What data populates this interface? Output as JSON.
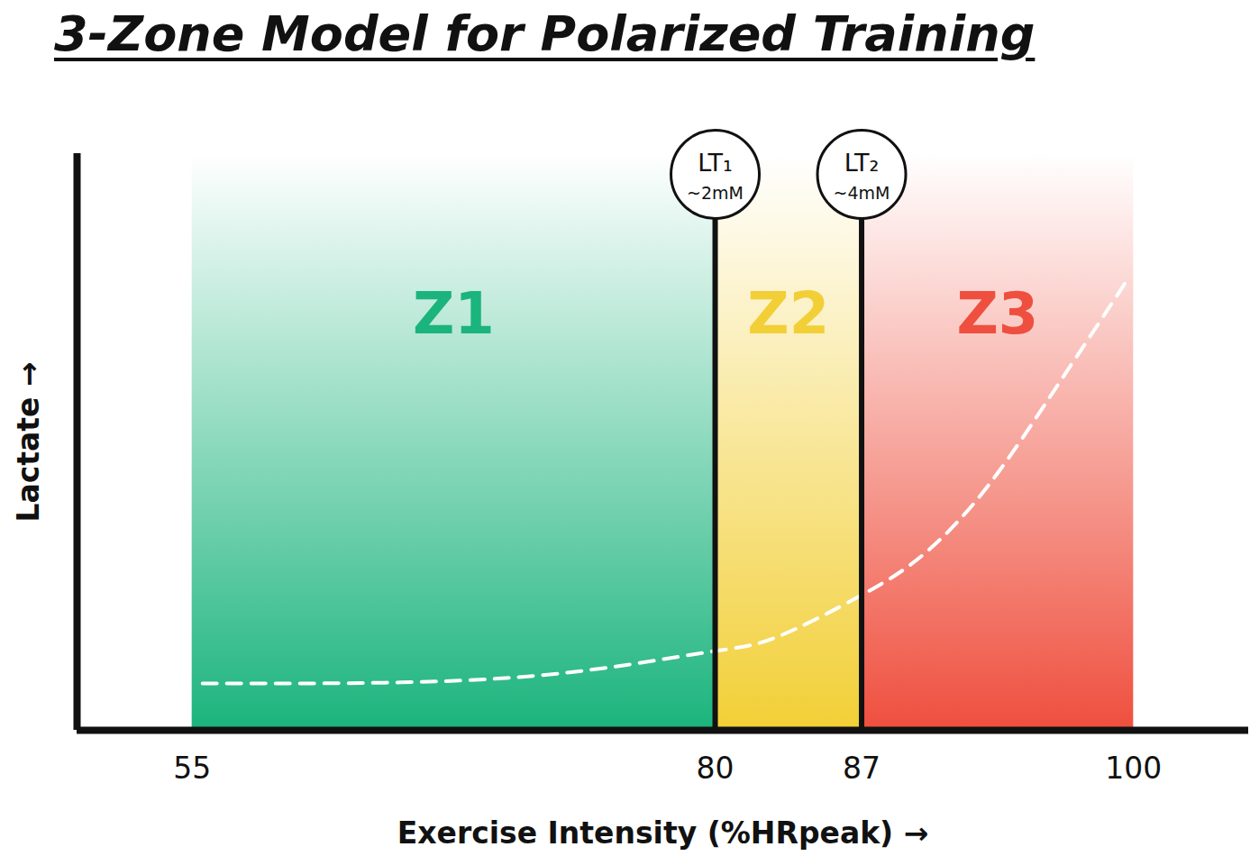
{
  "chart_data": {
    "type": "line",
    "title": "3-Zone Model for Polarized Training",
    "x_label": "Exercise Intensity (%HRpeak)",
    "y_label": "Lactate",
    "x": [
      55.5,
      60,
      65,
      70,
      75,
      80,
      83,
      87,
      90,
      93,
      96,
      98,
      99.7
    ],
    "values": [
      1.3,
      1.3,
      1.33,
      1.45,
      1.75,
      2.2,
      2.6,
      3.75,
      4.9,
      6.75,
      9.25,
      11,
      12.5
    ],
    "color": "#ffffff",
    "line_style": "dashed",
    "xlim": [
      49.5,
      105.5
    ],
    "xticks": [
      55,
      80,
      87,
      100
    ],
    "ylim": [
      0,
      16
    ],
    "tick_labels": "x",
    "zones": [
      {
        "name": "Z1",
        "start": 55,
        "end": 80,
        "color": "#1bb47d"
      },
      {
        "name": "Z2",
        "start": 80,
        "end": 87,
        "color": "#f2cf36"
      },
      {
        "name": "Z3",
        "start": 87,
        "end": 100,
        "color": "#ef4f3e"
      }
    ],
    "thresholds": [
      {
        "x": 80,
        "label": "LT₁",
        "note": "~2mM"
      },
      {
        "x": 87,
        "label": "LT₂",
        "note": "~4mM"
      }
    ]
  }
}
